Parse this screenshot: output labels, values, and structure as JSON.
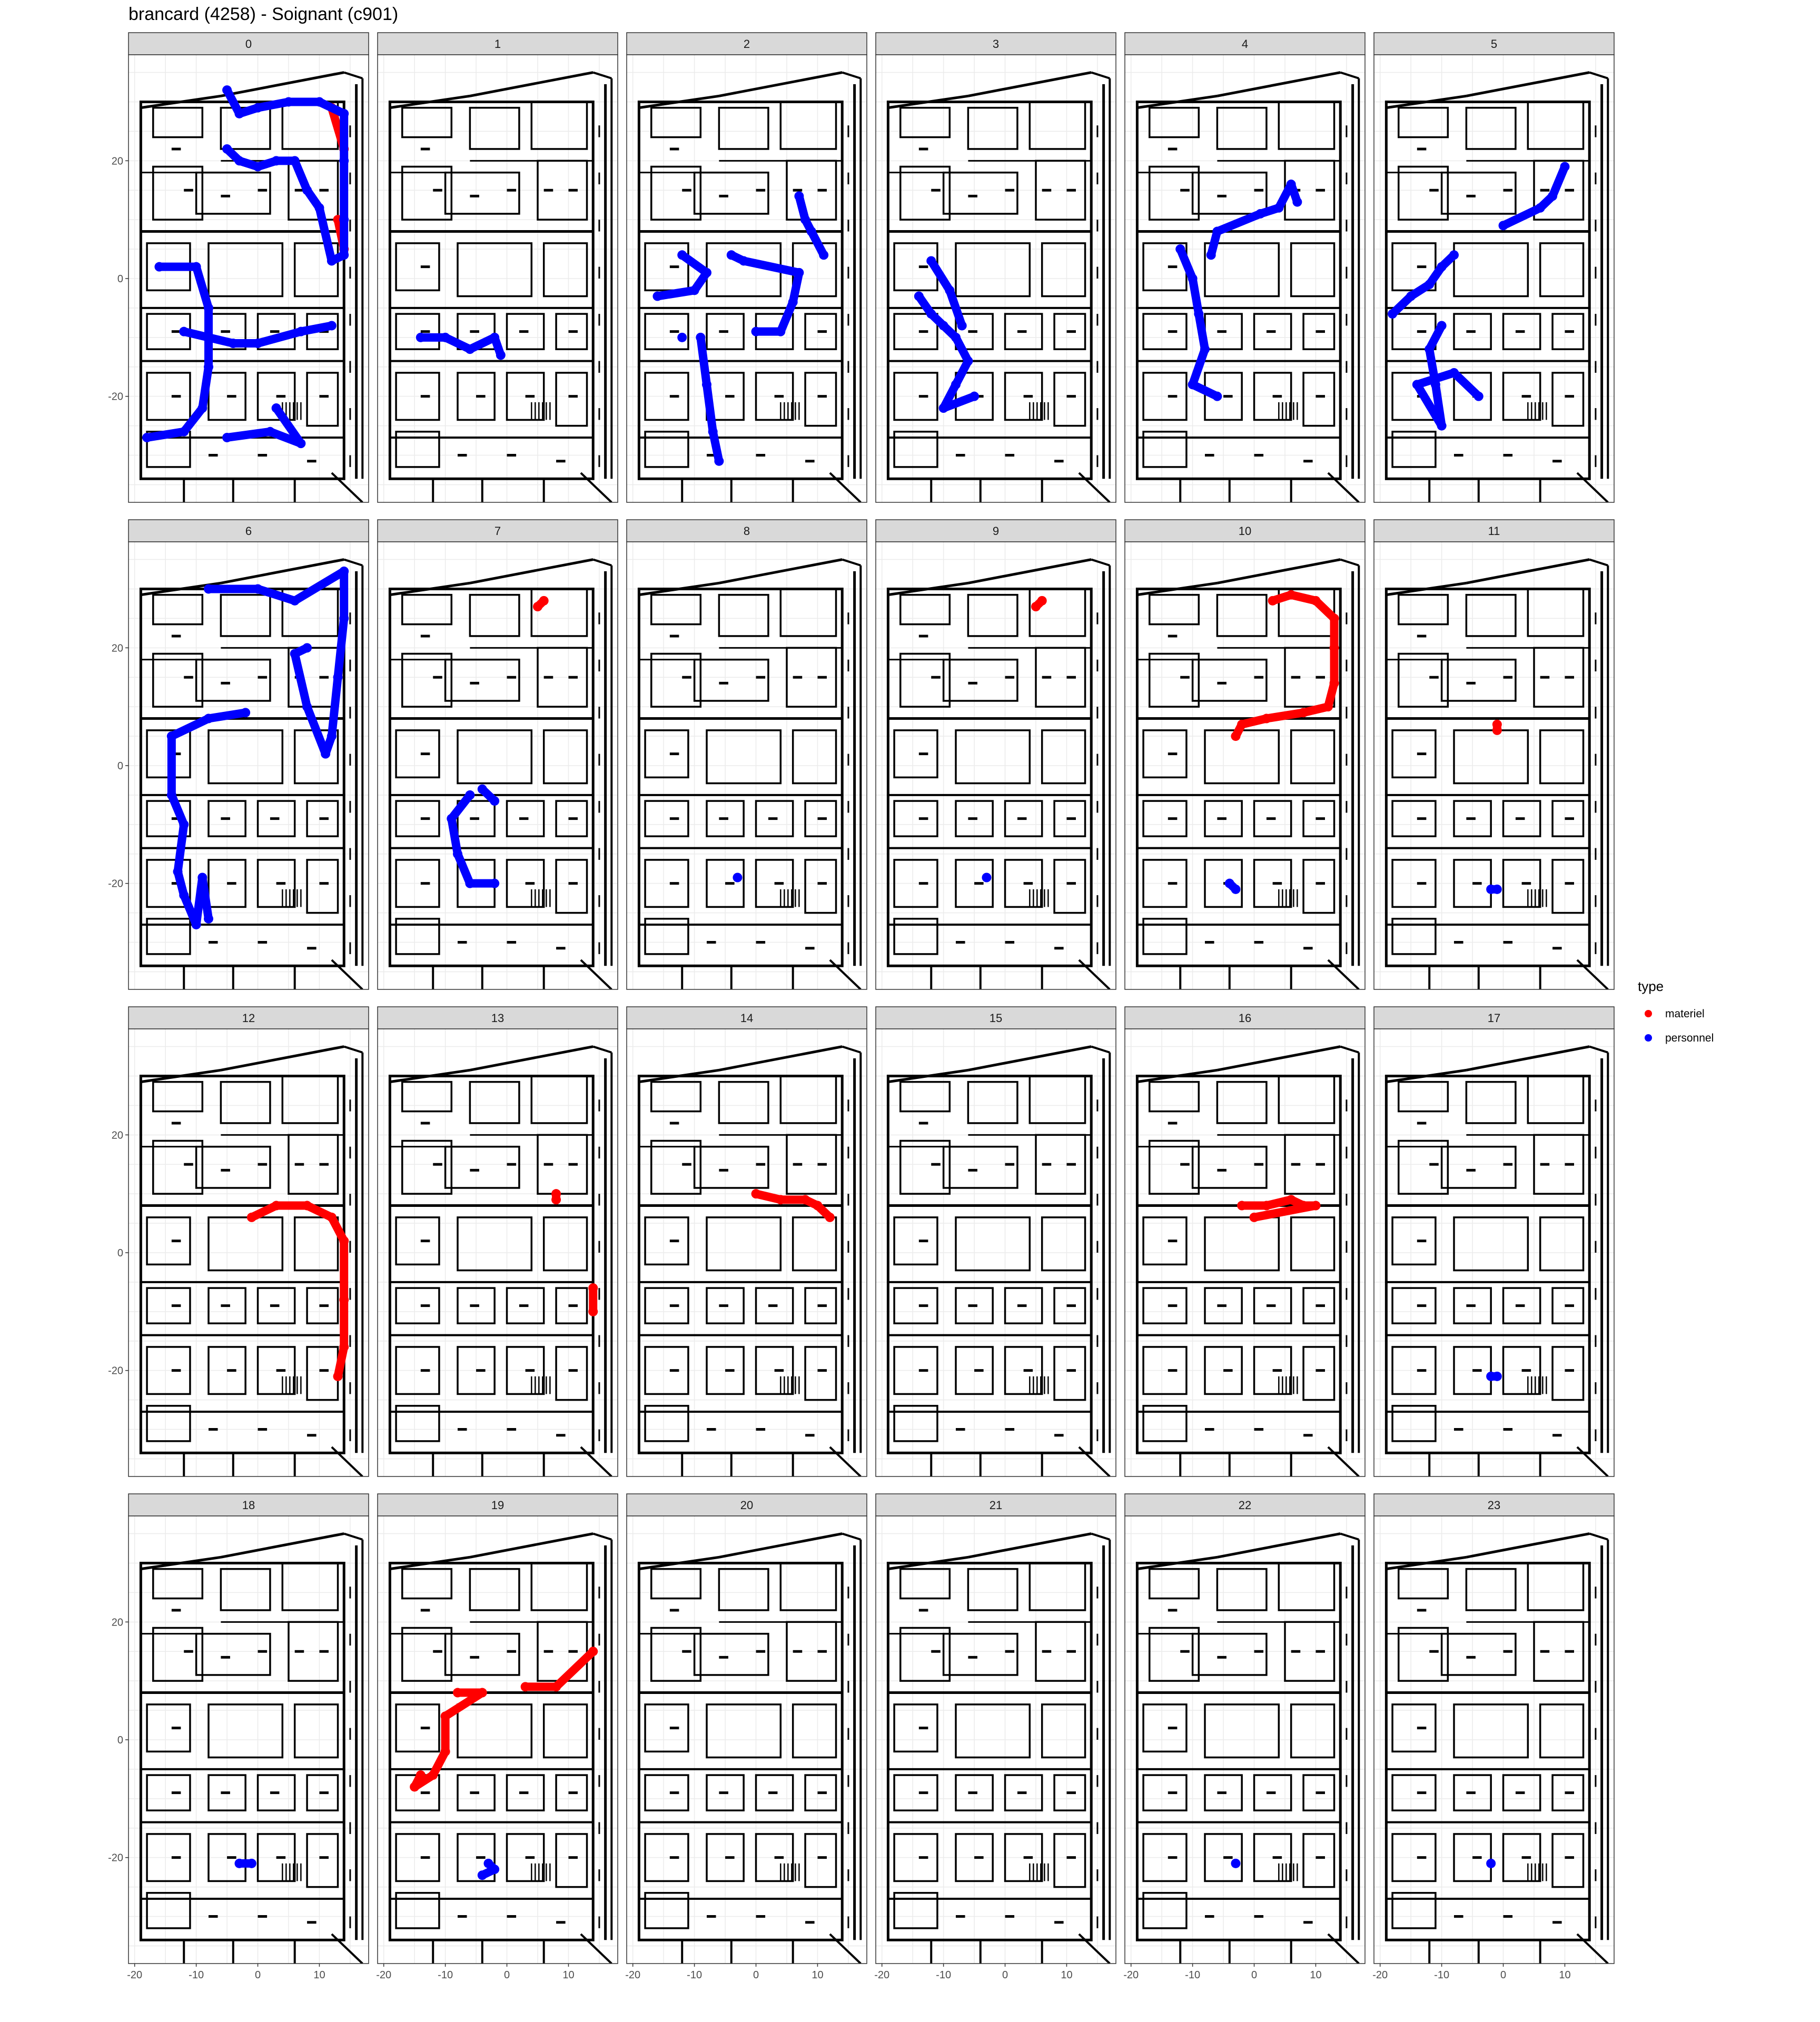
{
  "title": "brancard (4258) - Soignant (c901)",
  "legend": {
    "title": "type",
    "entries": [
      {
        "label": "materiel",
        "color": "#ff0000"
      },
      {
        "label": "personnel",
        "color": "#0000ff"
      }
    ],
    "placement": "right"
  },
  "chart_data": {
    "type": "scatter",
    "title": "brancard (4258) - Soignant (c901)",
    "facet_by": "hour",
    "facets": [
      "0",
      "1",
      "2",
      "3",
      "4",
      "5",
      "6",
      "7",
      "8",
      "9",
      "10",
      "11",
      "12",
      "13",
      "14",
      "15",
      "16",
      "17",
      "18",
      "19",
      "20",
      "21",
      "22",
      "23"
    ],
    "xlim": [
      -21,
      18
    ],
    "ylim": [
      -38,
      38
    ],
    "x_ticks": [
      -20,
      -10,
      0,
      10
    ],
    "y_ticks": [
      -20,
      0,
      20
    ],
    "grid": true,
    "background": "floor-plan",
    "colors": {
      "materiel": "#ff0000",
      "personnel": "#0000ff"
    },
    "series": [
      {
        "name": "materiel",
        "panels": {
          "0": [
            [
              12,
              29
            ],
            [
              14,
              22
            ],
            [
              13,
              10
            ],
            [
              14,
              5
            ]
          ],
          "7": [
            [
              5,
              27
            ],
            [
              6,
              28
            ]
          ],
          "9": [
            [
              5,
              27
            ],
            [
              6,
              28
            ]
          ],
          "10": [
            [
              3,
              28
            ],
            [
              6,
              29
            ],
            [
              10,
              28
            ],
            [
              13,
              25
            ],
            [
              13,
              20
            ],
            [
              13,
              14
            ],
            [
              12,
              10
            ],
            [
              8,
              9
            ],
            [
              2,
              8
            ],
            [
              -2,
              7
            ],
            [
              -3,
              5
            ]
          ],
          "11": [
            [
              -1,
              7
            ],
            [
              -1,
              6
            ]
          ],
          "12": [
            [
              -1,
              6
            ],
            [
              3,
              8
            ],
            [
              8,
              8
            ],
            [
              12,
              6
            ],
            [
              14,
              2
            ],
            [
              14,
              -8
            ],
            [
              14,
              -16
            ],
            [
              13,
              -21
            ]
          ],
          "13": [
            [
              8,
              10
            ],
            [
              8,
              9
            ],
            [
              14,
              -6
            ],
            [
              14,
              -10
            ]
          ],
          "14": [
            [
              0,
              10
            ],
            [
              4,
              9
            ],
            [
              8,
              9
            ],
            [
              10,
              8
            ],
            [
              12,
              6
            ]
          ],
          "16": [
            [
              -2,
              8
            ],
            [
              2,
              8
            ],
            [
              6,
              9
            ],
            [
              8,
              8
            ],
            [
              10,
              8
            ],
            [
              0,
              6
            ]
          ],
          "19": [
            [
              -8,
              8
            ],
            [
              -4,
              8
            ],
            [
              -10,
              4
            ],
            [
              -10,
              -2
            ],
            [
              -12,
              -6
            ],
            [
              -15,
              -8
            ],
            [
              -14,
              -6
            ],
            [
              3,
              9
            ],
            [
              8,
              9
            ],
            [
              14,
              15
            ]
          ]
        }
      },
      {
        "name": "personnel",
        "panels": {
          "0": [
            [
              -5,
              32
            ],
            [
              -3,
              28
            ],
            [
              0,
              29
            ],
            [
              5,
              30
            ],
            [
              10,
              30
            ],
            [
              14,
              28
            ],
            [
              14,
              20
            ],
            [
              14,
              10
            ],
            [
              14,
              4
            ],
            [
              12,
              3
            ],
            [
              10,
              12
            ],
            [
              8,
              15
            ],
            [
              6,
              20
            ],
            [
              3,
              20
            ],
            [
              0,
              19
            ],
            [
              -3,
              20
            ],
            [
              -5,
              22
            ],
            [
              -16,
              2
            ],
            [
              -10,
              2
            ],
            [
              -8,
              -5
            ],
            [
              -8,
              -15
            ],
            [
              -9,
              -22
            ],
            [
              -12,
              -26
            ],
            [
              -18,
              -27
            ],
            [
              -5,
              -27
            ],
            [
              2,
              -26
            ],
            [
              7,
              -28
            ],
            [
              3,
              -22
            ],
            [
              -12,
              -9
            ],
            [
              -4,
              -11
            ],
            [
              0,
              -11
            ],
            [
              7,
              -9
            ],
            [
              12,
              -8
            ]
          ],
          "1": [
            [
              -14,
              -10
            ],
            [
              -10,
              -10
            ],
            [
              -6,
              -12
            ],
            [
              -2,
              -10
            ],
            [
              -1,
              -13
            ]
          ],
          "2": [
            [
              -16,
              -3
            ],
            [
              -10,
              -2
            ],
            [
              -8,
              1
            ],
            [
              -12,
              4
            ],
            [
              -9,
              -10
            ],
            [
              -8,
              -18
            ],
            [
              -7,
              -26
            ],
            [
              -6,
              -31
            ],
            [
              -12,
              -10
            ],
            [
              0,
              -9
            ],
            [
              4,
              -9
            ],
            [
              6,
              -4
            ],
            [
              7,
              1
            ],
            [
              -2,
              3
            ],
            [
              -4,
              4
            ],
            [
              7,
              14
            ],
            [
              8,
              10
            ],
            [
              9,
              8
            ],
            [
              11,
              4
            ]
          ],
          "3": [
            [
              -14,
              -3
            ],
            [
              -12,
              -6
            ],
            [
              -10,
              -8
            ],
            [
              -8,
              -10
            ],
            [
              -6,
              -14
            ],
            [
              -8,
              -18
            ],
            [
              -10,
              -22
            ],
            [
              -5,
              -20
            ],
            [
              -12,
              3
            ],
            [
              -9,
              -2
            ],
            [
              -7,
              -8
            ]
          ],
          "4": [
            [
              -12,
              5
            ],
            [
              -10,
              0
            ],
            [
              -9,
              -6
            ],
            [
              -8,
              -12
            ],
            [
              -10,
              -18
            ],
            [
              -6,
              -20
            ],
            [
              -7,
              4
            ],
            [
              -6,
              8
            ],
            [
              1,
              11
            ],
            [
              4,
              12
            ],
            [
              6,
              16
            ],
            [
              7,
              13
            ]
          ],
          "5": [
            [
              -18,
              -6
            ],
            [
              -15,
              -3
            ],
            [
              -12,
              -1
            ],
            [
              -10,
              2
            ],
            [
              -8,
              4
            ],
            [
              -10,
              -8
            ],
            [
              -12,
              -12
            ],
            [
              -11,
              -18
            ],
            [
              -10,
              -25
            ],
            [
              -14,
              -18
            ],
            [
              -8,
              -16
            ],
            [
              -4,
              -20
            ],
            [
              0,
              9
            ],
            [
              6,
              12
            ],
            [
              8,
              14
            ],
            [
              10,
              19
            ]
          ],
          "6": [
            [
              -8,
              30
            ],
            [
              0,
              30
            ],
            [
              6,
              28
            ],
            [
              14,
              33
            ],
            [
              14,
              25
            ],
            [
              13,
              15
            ],
            [
              12,
              5
            ],
            [
              11,
              2
            ],
            [
              8,
              10
            ],
            [
              6,
              19
            ],
            [
              8,
              20
            ],
            [
              -2,
              9
            ],
            [
              -8,
              8
            ],
            [
              -14,
              5
            ],
            [
              -14,
              -5
            ],
            [
              -12,
              -10
            ],
            [
              -13,
              -18
            ],
            [
              -12,
              -22
            ],
            [
              -10,
              -27
            ],
            [
              -9,
              -19
            ],
            [
              -8,
              -26
            ]
          ],
          "7": [
            [
              -6,
              -5
            ],
            [
              -9,
              -9
            ],
            [
              -8,
              -15
            ],
            [
              -6,
              -20
            ],
            [
              -2,
              -20
            ],
            [
              -2,
              -6
            ],
            [
              -4,
              -4
            ]
          ],
          "8": [
            [
              -3,
              -19
            ]
          ],
          "9": [
            [
              -3,
              -19
            ]
          ],
          "10": [
            [
              -4,
              -20
            ],
            [
              -3,
              -21
            ]
          ],
          "11": [
            [
              -2,
              -21
            ],
            [
              -1,
              -21
            ]
          ],
          "17": [
            [
              -2,
              -21
            ],
            [
              -1,
              -21
            ]
          ],
          "18": [
            [
              -3,
              -21
            ],
            [
              -1,
              -21
            ]
          ],
          "19": [
            [
              -3,
              -21
            ],
            [
              -2,
              -22
            ],
            [
              -4,
              -23
            ]
          ],
          "22": [
            [
              -3,
              -21
            ]
          ],
          "23": [
            [
              -2,
              -21
            ]
          ]
        }
      }
    ]
  }
}
